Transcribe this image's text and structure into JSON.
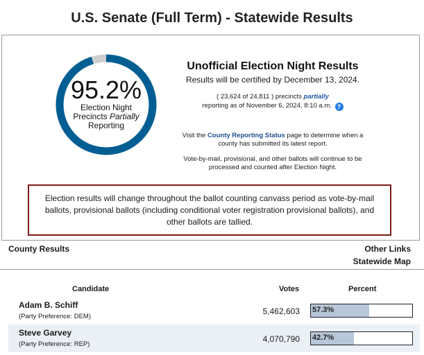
{
  "header": {
    "title": "U.S. Senate (Full Term) - Statewide Results"
  },
  "reporting": {
    "percent_text": "95.2%",
    "percent_value": 95.2,
    "label_line1": "Election Night",
    "label_line2_prefix": "Precincts ",
    "label_line2_emph": "Partially",
    "label_line3": "Reporting",
    "ring_color": "#005e93",
    "ring_remainder_color": "#cfcfcf"
  },
  "info": {
    "heading": "Unofficial Election Night Results",
    "certified": "Results will be certified by December 13, 2024.",
    "precincts_prefix": "( 23,624 of 24,811 ) precincts ",
    "precincts_emph": "partially",
    "precincts_suffix": "reporting as of November 6, 2024, 8:10 a.m.",
    "help_icon": "question-circle-icon",
    "visit_prefix": "Visit the ",
    "visit_link": "County Reporting Status",
    "visit_suffix": " page to determine when a county has submitted its latest report.",
    "vbm_note": "Vote-by-mail, provisional, and other ballots will continue to be processed and counted after Election Night."
  },
  "notice": {
    "text": "Election results will change throughout the ballot counting canvass period as vote-by-mail ballots, provisional ballots (including conditional voter registration provisional ballots), and other ballots are tallied.",
    "border_color": "#7d1a1a"
  },
  "county": {
    "title": "County Results",
    "other_links": "Other Links",
    "statewide_map": "Statewide Map"
  },
  "table": {
    "headers": {
      "candidate": "Candidate",
      "votes": "Votes",
      "percent": "Percent"
    },
    "rows": [
      {
        "name": "Adam B. Schiff",
        "party": "(Party Preference: DEM)",
        "votes": "5,462,603",
        "percent_text": "57.3%",
        "percent_value": 57.3
      },
      {
        "name": "Steve Garvey",
        "party": "(Party Preference: REP)",
        "votes": "4,070,790",
        "percent_text": "42.7%",
        "percent_value": 42.7
      }
    ]
  }
}
